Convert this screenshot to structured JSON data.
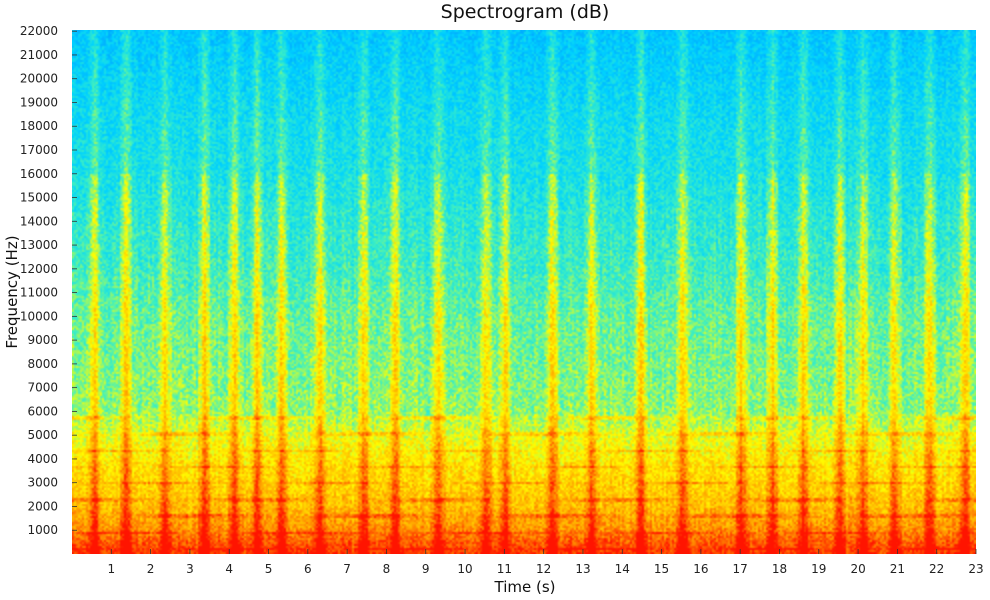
{
  "chart_data": {
    "type": "heatmap",
    "title": "Spectrogram (dB)",
    "xlabel": "Time (s)",
    "ylabel": "Frequency (Hz)",
    "xlim": [
      0,
      23
    ],
    "ylim": [
      0,
      22050
    ],
    "x_ticks": [
      1,
      2,
      3,
      4,
      5,
      6,
      7,
      8,
      9,
      10,
      11,
      12,
      13,
      14,
      15,
      16,
      17,
      18,
      19,
      20,
      21,
      22,
      23
    ],
    "y_ticks": [
      1000,
      2000,
      3000,
      4000,
      5000,
      6000,
      7000,
      8000,
      9000,
      10000,
      11000,
      12000,
      13000,
      14000,
      15000,
      16000,
      17000,
      18000,
      19000,
      20000,
      21000,
      22000
    ],
    "grid": false,
    "colormap": "jet",
    "colors": {
      "low": "#00c8ff",
      "mid_low": "#40f0c0",
      "mid": "#ffff00",
      "mid_high": "#ffa000",
      "high": "#ff1a00"
    },
    "energy_profile": {
      "frequency_hz": [
        0,
        500,
        1000,
        2000,
        3000,
        4000,
        5000,
        6000,
        8000,
        10000,
        12000,
        14000,
        16000,
        18000,
        20000,
        22050
      ],
      "level_0_to_1": [
        0.95,
        0.9,
        0.82,
        0.74,
        0.7,
        0.66,
        0.6,
        0.52,
        0.5,
        0.48,
        0.43,
        0.4,
        0.36,
        0.34,
        0.3,
        0.26
      ]
    },
    "transients_s": [
      0.55,
      1.35,
      2.35,
      3.35,
      4.1,
      4.7,
      5.3,
      6.3,
      7.4,
      8.2,
      9.3,
      10.5,
      11.0,
      12.2,
      13.2,
      14.45,
      15.5,
      17.0,
      17.8,
      18.6,
      19.5,
      20.1,
      20.9,
      21.8,
      22.7
    ]
  }
}
